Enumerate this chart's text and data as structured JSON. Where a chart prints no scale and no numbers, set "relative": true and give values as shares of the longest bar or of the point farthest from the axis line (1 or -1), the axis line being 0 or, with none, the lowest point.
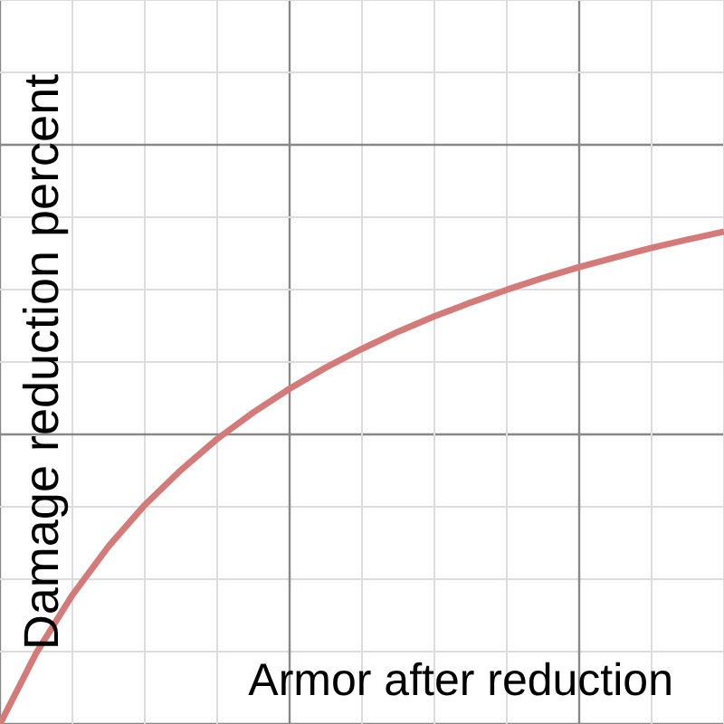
{
  "chart_data": {
    "type": "line",
    "relative": true,
    "xlabel": "Armor after reduction",
    "ylabel": "Damage reduction percent",
    "grid": true,
    "marker": "none",
    "line_style": "solid",
    "categories": [
      null,
      null,
      null,
      null,
      null,
      null,
      null,
      null,
      null,
      null,
      null,
      null,
      null,
      null,
      null,
      null,
      null,
      null,
      null,
      null,
      null
    ],
    "series": [
      {
        "color": "#d47a78",
        "values": [
          0,
          0.144,
          0.262,
          0.361,
          0.445,
          0.516,
          0.579,
          0.633,
          0.681,
          0.724,
          0.762,
          0.797,
          0.828,
          0.856,
          0.882,
          0.906,
          0.928,
          0.948,
          0.967,
          0.984,
          1
        ]
      }
    ]
  }
}
